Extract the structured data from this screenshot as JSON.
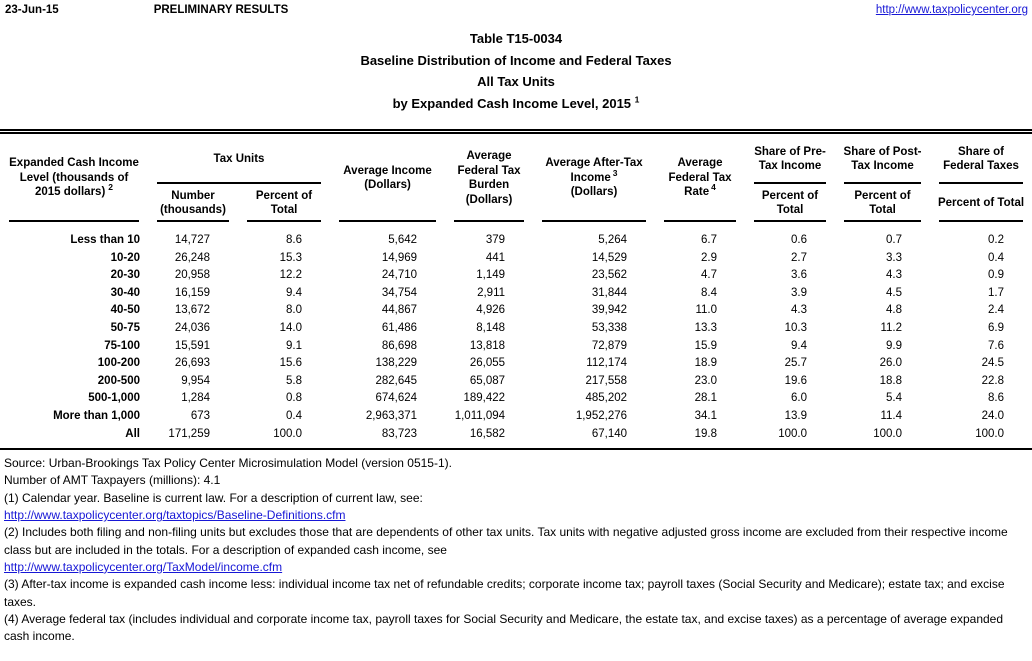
{
  "page": {
    "date": "23-Jun-15",
    "banner": "PRELIMINARY RESULTS",
    "site_link": "http://www.taxpolicycenter.org"
  },
  "title": {
    "line1": "Table T15-0034",
    "line2": "Baseline Distribution of Income and Federal Taxes",
    "line3": "All Tax Units",
    "line4": "by Expanded Cash Income Level, 2015",
    "line4_sup": "1"
  },
  "table": {
    "col_income_level": {
      "text": "Expanded Cash Income Level (thousands of 2015 dollars)",
      "sup": "2"
    },
    "group_tax_units": "Tax Units",
    "col_number": "Number (thousands)",
    "col_percent_total": "Percent of Total",
    "col_avg_income": {
      "text": "Average Income",
      "unit": "(Dollars)"
    },
    "col_avg_fed_tax_burden": {
      "text": "Average Federal Tax Burden",
      "unit": "(Dollars)"
    },
    "col_avg_after_tax": {
      "text": "Average After-Tax Income",
      "sup": "3",
      "unit": "(Dollars)"
    },
    "col_avg_fed_tax_rate": {
      "text": "Average Federal Tax Rate",
      "sup": "4"
    },
    "group_share_pre": "Share of Pre-Tax Income",
    "group_share_post": "Share of Post-Tax Income",
    "group_share_fed": "Share of Federal Taxes",
    "sub_percent_total": "Percent of Total",
    "rows": [
      [
        "Less than 10",
        "14,727",
        "8.6",
        "5,642",
        "379",
        "5,264",
        "6.7",
        "0.6",
        "0.7",
        "0.2"
      ],
      [
        "10-20",
        "26,248",
        "15.3",
        "14,969",
        "441",
        "14,529",
        "2.9",
        "2.7",
        "3.3",
        "0.4"
      ],
      [
        "20-30",
        "20,958",
        "12.2",
        "24,710",
        "1,149",
        "23,562",
        "4.7",
        "3.6",
        "4.3",
        "0.9"
      ],
      [
        "30-40",
        "16,159",
        "9.4",
        "34,754",
        "2,911",
        "31,844",
        "8.4",
        "3.9",
        "4.5",
        "1.7"
      ],
      [
        "40-50",
        "13,672",
        "8.0",
        "44,867",
        "4,926",
        "39,942",
        "11.0",
        "4.3",
        "4.8",
        "2.4"
      ],
      [
        "50-75",
        "24,036",
        "14.0",
        "61,486",
        "8,148",
        "53,338",
        "13.3",
        "10.3",
        "11.2",
        "6.9"
      ],
      [
        "75-100",
        "15,591",
        "9.1",
        "86,698",
        "13,818",
        "72,879",
        "15.9",
        "9.4",
        "9.9",
        "7.6"
      ],
      [
        "100-200",
        "26,693",
        "15.6",
        "138,229",
        "26,055",
        "112,174",
        "18.9",
        "25.7",
        "26.0",
        "24.5"
      ],
      [
        "200-500",
        "9,954",
        "5.8",
        "282,645",
        "65,087",
        "217,558",
        "23.0",
        "19.6",
        "18.8",
        "22.8"
      ],
      [
        "500-1,000",
        "1,284",
        "0.8",
        "674,624",
        "189,422",
        "485,202",
        "28.1",
        "6.0",
        "5.4",
        "8.6"
      ],
      [
        "More than 1,000",
        "673",
        "0.4",
        "2,963,371",
        "1,011,094",
        "1,952,276",
        "34.1",
        "13.9",
        "11.4",
        "24.0"
      ],
      [
        "All",
        "171,259",
        "100.0",
        "83,723",
        "16,582",
        "67,140",
        "19.8",
        "100.0",
        "100.0",
        "100.0"
      ]
    ]
  },
  "footnotes": {
    "source": "Source: Urban-Brookings Tax Policy Center Microsimulation Model (version 0515-1).",
    "amt": "Number of AMT Taxpayers (millions): 4.1",
    "fn1": "(1) Calendar year. Baseline is current law. For a description of current law, see:",
    "link1": "http://www.taxpolicycenter.org/taxtopics/Baseline-Definitions.cfm",
    "fn2": "(2) Includes both filing and non-filing units but excludes those that are dependents of other tax units. Tax units with negative adjusted gross income are excluded from their respective income class but are included in the totals. For a description of expanded cash income, see",
    "link2": "http://www.taxpolicycenter.org/TaxModel/income.cfm",
    "fn3": "(3) After-tax income is expanded cash income less: individual income tax net of refundable credits; corporate income tax; payroll taxes (Social Security and Medicare); estate tax; and excise taxes.",
    "fn4": "(4) Average federal tax (includes individual and corporate income tax, payroll taxes for Social Security and Medicare, the estate tax, and excise taxes) as a percentage of average expanded cash income."
  },
  "colors": {
    "link": "#1717d6",
    "text": "#000000"
  }
}
